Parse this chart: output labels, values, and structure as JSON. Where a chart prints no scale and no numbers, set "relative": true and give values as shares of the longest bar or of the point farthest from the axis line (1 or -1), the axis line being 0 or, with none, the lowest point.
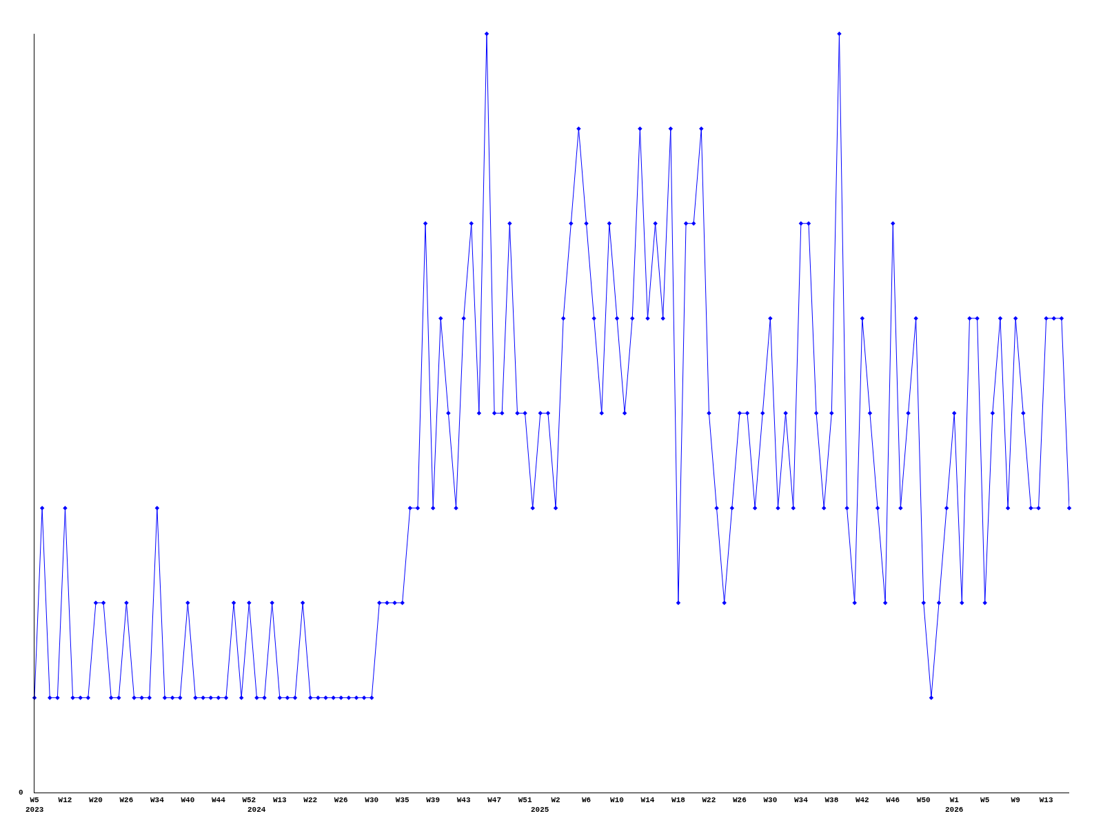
{
  "chart_data": {
    "type": "line",
    "relative": true,
    "color": "#0000ff",
    "marker": "diamond",
    "line_style": "solid",
    "grid": false,
    "legend": false,
    "categories": [
      "W5",
      null,
      null,
      null,
      "W12",
      null,
      null,
      null,
      "W20",
      null,
      null,
      null,
      "W26",
      null,
      null,
      null,
      "W34",
      null,
      null,
      null,
      "W40",
      null,
      null,
      null,
      "W44",
      null,
      null,
      null,
      "W52",
      null,
      null,
      null,
      "W13",
      null,
      null,
      null,
      "W22",
      null,
      null,
      null,
      "W26",
      null,
      null,
      null,
      "W30",
      null,
      null,
      null,
      "W35",
      null,
      null,
      null,
      "W39",
      null,
      null,
      null,
      "W43",
      null,
      null,
      null,
      "W47",
      null,
      null,
      null,
      "W51",
      null,
      null,
      null,
      "W2",
      null,
      null,
      null,
      "W6",
      null,
      null,
      null,
      "W10",
      null,
      null,
      null,
      "W14",
      null,
      null,
      null,
      "W18",
      null,
      null,
      null,
      "W22",
      null,
      null,
      null,
      "W26",
      null,
      null,
      null,
      "W30",
      null,
      null,
      null,
      "W34",
      null,
      null,
      null,
      "W38",
      null,
      null,
      null,
      "W42",
      null,
      null,
      null,
      "W46",
      null,
      null,
      null,
      "W50",
      null,
      null,
      null,
      "W1",
      null,
      null,
      null,
      "W5",
      null,
      null,
      null,
      "W9",
      null,
      null,
      null,
      "W13",
      null,
      null,
      null
    ],
    "values": [
      0.125,
      0.375,
      0.125,
      0.125,
      0.375,
      0.125,
      0.125,
      0.125,
      0.25,
      0.25,
      0.125,
      0.125,
      0.25,
      0.125,
      0.125,
      0.125,
      0.375,
      0.125,
      0.125,
      0.125,
      0.25,
      0.125,
      0.125,
      0.125,
      0.125,
      0.125,
      0.25,
      0.125,
      0.25,
      0.125,
      0.125,
      0.25,
      0.125,
      0.125,
      0.125,
      0.25,
      0.125,
      0.125,
      0.125,
      0.125,
      0.125,
      0.125,
      0.125,
      0.125,
      0.125,
      0.25,
      0.25,
      0.25,
      0.25,
      0.375,
      0.375,
      0.75,
      0.375,
      0.625,
      0.5,
      0.375,
      0.625,
      0.75,
      0.5,
      1,
      0.5,
      0.5,
      0.75,
      0.5,
      0.5,
      0.375,
      0.5,
      0.5,
      0.375,
      0.625,
      0.75,
      0.875,
      0.75,
      0.625,
      0.5,
      0.75,
      0.625,
      0.5,
      0.625,
      0.875,
      0.625,
      0.75,
      0.625,
      0.875,
      0.25,
      0.75,
      0.75,
      0.875,
      0.5,
      0.375,
      0.25,
      0.375,
      0.5,
      0.5,
      0.375,
      0.5,
      0.625,
      0.375,
      0.5,
      0.375,
      0.75,
      0.75,
      0.5,
      0.375,
      0.5,
      1,
      0.375,
      0.25,
      0.625,
      0.5,
      0.375,
      0.25,
      0.75,
      0.375,
      0.5,
      0.625,
      0.25,
      0.125,
      0.25,
      0.375,
      0.5,
      0.25,
      0.625,
      0.625,
      0.25,
      0.5,
      0.625,
      0.375,
      0.625,
      0.5,
      0.375,
      0.375,
      0.625,
      0.625,
      0.625,
      0.375
    ],
    "annotations": [
      "0",
      "2023",
      "2024",
      "2025",
      "2026"
    ]
  }
}
